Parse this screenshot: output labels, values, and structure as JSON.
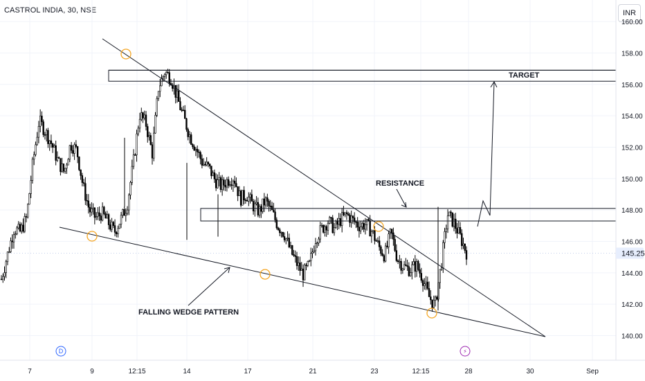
{
  "header": {
    "symbol_title": "CASTROL INDIA, 30, NSE",
    "currency": "INR"
  },
  "colors": {
    "candle_up": "#000000",
    "candle_down": "#000000",
    "drawing": "#131722",
    "pivot_marker": "#f5a623",
    "grid": "#f0f3fa",
    "price_tag_bg": "#e7eefd",
    "dividend_badge": "#2962ff",
    "earnings_badge": "#9c27b0"
  },
  "chart_data": {
    "type": "candlestick",
    "title": "",
    "ylim": [
      138.8,
      160.8
    ],
    "y_ticks": [
      "140.00",
      "142.00",
      "144.00",
      "146.00",
      "148.00",
      "150.00",
      "152.00",
      "154.00",
      "156.00",
      "158.00",
      "160.00"
    ],
    "x_ticks": [
      "7",
      "9",
      "12:15",
      "14",
      "17",
      "21",
      "23",
      "12:15",
      "28",
      "30",
      "Sep"
    ],
    "last_price": "145.25",
    "grid": true,
    "annotations": {
      "target_label": "TARGET",
      "resistance_label": "RESISTANCE",
      "pattern_label": "FALLING WEDGE PATTERN",
      "dividend_badge": "D",
      "earnings_badge": "⚡"
    },
    "zones": [
      {
        "name": "target",
        "y_low": 156.2,
        "y_high": 156.9
      },
      {
        "name": "resistance",
        "y_low": 147.3,
        "y_high": 148.1
      }
    ],
    "series": [
      {
        "name": "",
        "close_path": [
          143.6,
          145.2,
          146.8,
          146.6,
          147.5,
          151.0,
          153.7,
          153.0,
          152.2,
          151.1,
          150.4,
          152.2,
          151.8,
          149.5,
          148.0,
          147.5,
          147.8,
          147.2,
          146.6,
          147.4,
          148.3,
          151.0,
          154.1,
          153.5,
          151.6,
          155.8,
          156.8,
          156.4,
          155.1,
          153.9,
          152.7,
          151.9,
          151.0,
          150.7,
          149.9,
          149.5,
          149.9,
          150.1,
          148.7,
          149.0,
          148.3,
          147.9,
          148.6,
          147.9,
          147.0,
          146.5,
          145.4,
          144.6,
          143.9,
          144.5,
          146.2,
          146.8,
          147.3,
          146.8,
          147.4,
          147.7,
          147.3,
          147.0,
          147.1,
          146.6,
          145.7,
          145.1,
          146.6,
          144.9,
          144.4,
          144.2,
          144.5,
          143.7,
          142.5,
          141.9,
          144.6,
          147.7,
          147.2,
          146.3,
          145.3
        ]
      }
    ]
  }
}
